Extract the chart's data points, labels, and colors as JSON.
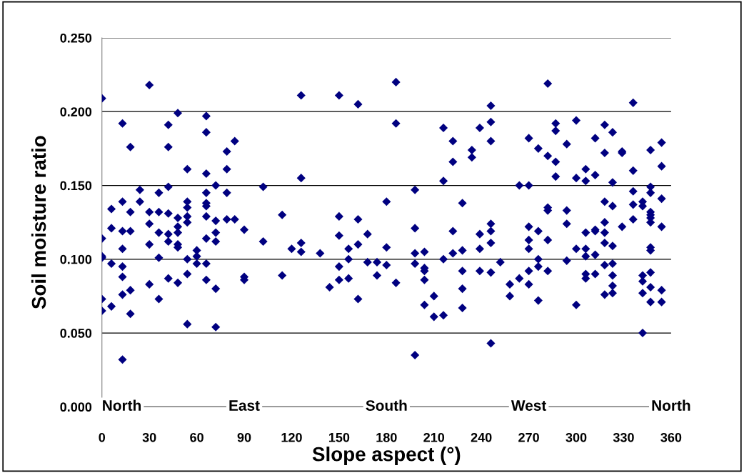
{
  "chart_data": {
    "type": "scatter",
    "xlabel": "Slope aspect (°)",
    "ylabel": "Soil moisture ratio",
    "series": [
      {
        "color": "#000080",
        "x": [
          0,
          0,
          0,
          0,
          0,
          0,
          6,
          6,
          6,
          6,
          13,
          13,
          13,
          13,
          13,
          13,
          13,
          13,
          18,
          18,
          18,
          18,
          18,
          24,
          24,
          30,
          30,
          30,
          30,
          30,
          36,
          36,
          36,
          36,
          36,
          42,
          42,
          42,
          42,
          42,
          42,
          42,
          48,
          48,
          48,
          48,
          48,
          48,
          48,
          54,
          54,
          54,
          54,
          54,
          54,
          54,
          54,
          60,
          60,
          60,
          66,
          66,
          66,
          66,
          66,
          66,
          66,
          66,
          66,
          66,
          72,
          72,
          72,
          72,
          72,
          72,
          79,
          79,
          79,
          79,
          84,
          84,
          90,
          90,
          90,
          102,
          102,
          114,
          114,
          120,
          126,
          126,
          126,
          126,
          138,
          144,
          150,
          150,
          150,
          150,
          150,
          156,
          156,
          156,
          162,
          162,
          162,
          162,
          168,
          168,
          174,
          174,
          180,
          180,
          180,
          186,
          186,
          186,
          198,
          198,
          198,
          198,
          198,
          204,
          204,
          204,
          204,
          204,
          210,
          210,
          216,
          216,
          216,
          216,
          222,
          222,
          222,
          222,
          228,
          228,
          228,
          228,
          228,
          234,
          234,
          239,
          239,
          239,
          239,
          246,
          246,
          246,
          246,
          246,
          246,
          246,
          246,
          252,
          258,
          258,
          264,
          264,
          270,
          270,
          270,
          270,
          270,
          270,
          270,
          276,
          276,
          276,
          276,
          276,
          282,
          282,
          282,
          282,
          282,
          282,
          287,
          287,
          287,
          287,
          294,
          294,
          294,
          294,
          300,
          300,
          300,
          300,
          306,
          306,
          306,
          306,
          306,
          306,
          306,
          312,
          312,
          312,
          312,
          312,
          312,
          318,
          318,
          318,
          318,
          318,
          318,
          318,
          318,
          323,
          323,
          323,
          323,
          323,
          323,
          323,
          323,
          329,
          329,
          329,
          336,
          336,
          336,
          336,
          336,
          342,
          342,
          342,
          342,
          342,
          342,
          347,
          347,
          347,
          347,
          347,
          347,
          347,
          347,
          347,
          347,
          347,
          347,
          354,
          354,
          354,
          354,
          354,
          354
        ],
        "values": [
          0.209,
          0.114,
          0.101,
          0.102,
          0.073,
          0.065,
          0.134,
          0.121,
          0.097,
          0.068,
          0.192,
          0.139,
          0.119,
          0.107,
          0.095,
          0.088,
          0.076,
          0.032,
          0.176,
          0.132,
          0.119,
          0.079,
          0.063,
          0.147,
          0.139,
          0.218,
          0.132,
          0.124,
          0.11,
          0.083,
          0.145,
          0.132,
          0.118,
          0.101,
          0.073,
          0.191,
          0.176,
          0.149,
          0.131,
          0.117,
          0.112,
          0.087,
          0.199,
          0.128,
          0.122,
          0.118,
          0.11,
          0.108,
          0.084,
          0.161,
          0.139,
          0.135,
          0.129,
          0.125,
          0.1,
          0.09,
          0.056,
          0.106,
          0.102,
          0.097,
          0.197,
          0.186,
          0.158,
          0.145,
          0.138,
          0.136,
          0.129,
          0.114,
          0.097,
          0.086,
          0.15,
          0.126,
          0.118,
          0.112,
          0.08,
          0.054,
          0.173,
          0.161,
          0.145,
          0.127,
          0.18,
          0.127,
          0.12,
          0.088,
          0.086,
          0.149,
          0.112,
          0.13,
          0.089,
          0.107,
          0.211,
          0.155,
          0.111,
          0.105,
          0.104,
          0.081,
          0.211,
          0.129,
          0.116,
          0.095,
          0.086,
          0.107,
          0.1,
          0.087,
          0.205,
          0.127,
          0.11,
          0.073,
          0.117,
          0.098,
          0.098,
          0.089,
          0.139,
          0.108,
          0.096,
          0.22,
          0.192,
          0.084,
          0.147,
          0.121,
          0.104,
          0.097,
          0.035,
          0.105,
          0.094,
          0.092,
          0.086,
          0.069,
          0.075,
          0.061,
          0.189,
          0.153,
          0.1,
          0.062,
          0.18,
          0.166,
          0.119,
          0.104,
          0.138,
          0.106,
          0.092,
          0.08,
          0.067,
          0.174,
          0.169,
          0.189,
          0.117,
          0.107,
          0.092,
          0.204,
          0.193,
          0.18,
          0.124,
          0.119,
          0.111,
          0.091,
          0.043,
          0.098,
          0.083,
          0.075,
          0.15,
          0.087,
          0.182,
          0.15,
          0.122,
          0.113,
          0.107,
          0.092,
          0.083,
          0.175,
          0.119,
          0.1,
          0.095,
          0.072,
          0.219,
          0.17,
          0.135,
          0.133,
          0.113,
          0.092,
          0.192,
          0.187,
          0.166,
          0.156,
          0.178,
          0.133,
          0.124,
          0.099,
          0.194,
          0.155,
          0.107,
          0.069,
          0.161,
          0.153,
          0.118,
          0.107,
          0.102,
          0.09,
          0.087,
          0.182,
          0.157,
          0.12,
          0.119,
          0.103,
          0.09,
          0.191,
          0.172,
          0.139,
          0.125,
          0.118,
          0.111,
          0.096,
          0.076,
          0.186,
          0.152,
          0.136,
          0.109,
          0.097,
          0.089,
          0.082,
          0.077,
          0.173,
          0.172,
          0.122,
          0.206,
          0.16,
          0.146,
          0.137,
          0.127,
          0.139,
          0.136,
          0.089,
          0.085,
          0.077,
          0.05,
          0.174,
          0.149,
          0.145,
          0.132,
          0.13,
          0.128,
          0.125,
          0.108,
          0.106,
          0.091,
          0.081,
          0.071,
          0.179,
          0.163,
          0.141,
          0.122,
          0.079,
          0.071
        ]
      }
    ],
    "xlim": [
      0,
      360
    ],
    "xticks": [
      0,
      30,
      60,
      90,
      120,
      150,
      180,
      210,
      240,
      270,
      300,
      330,
      360
    ],
    "ylim": [
      0,
      0.25
    ],
    "yticks": [
      {
        "value": 0,
        "label": "0.000"
      },
      {
        "value": 0.05,
        "label": "0.050"
      },
      {
        "value": 0.1,
        "label": "0.100"
      },
      {
        "value": 0.15,
        "label": "0.150"
      },
      {
        "value": 0.2,
        "label": "0.200"
      },
      {
        "value": 0.25,
        "label": "0.250"
      }
    ],
    "grid": "y",
    "legend": false,
    "marker": "diamond",
    "annotations": [
      "North",
      "East",
      "South",
      "West",
      "North"
    ]
  }
}
